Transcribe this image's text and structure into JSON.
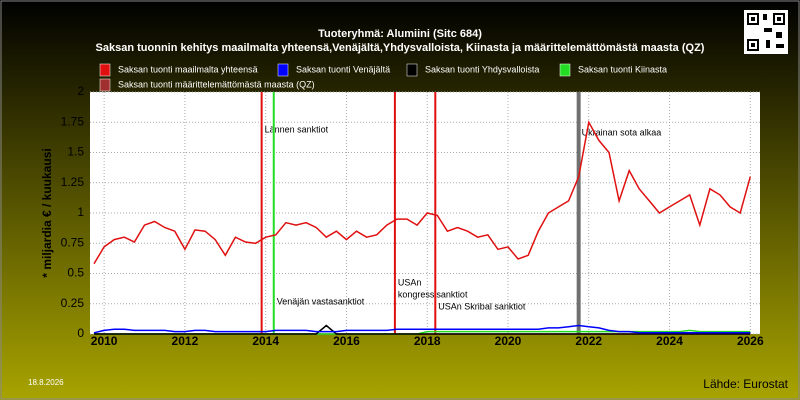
{
  "chart_data": {
    "type": "line",
    "title": "Tuoteryhmä: Alumiini (Sitc 684)",
    "subtitle": "Saksan tuonnin kehitys maailmalta yhteensä,Venäjältä,Yhdysvalloista, Kiinasta ja määrittelemättömästä maasta (QZ)",
    "y_label": "* miljardia € / kuukausi",
    "date": "18.8.2026",
    "source": "Lähde: Eurostat",
    "x": [
      2009.75,
      2010,
      2010.25,
      2010.5,
      2010.75,
      2011,
      2011.25,
      2011.5,
      2011.75,
      2012,
      2012.25,
      2012.5,
      2012.75,
      2013,
      2013.25,
      2013.5,
      2013.75,
      2014,
      2014.25,
      2014.5,
      2014.75,
      2015,
      2015.25,
      2015.5,
      2015.75,
      2016,
      2016.25,
      2016.5,
      2016.75,
      2017,
      2017.25,
      2017.5,
      2017.75,
      2018,
      2018.25,
      2018.5,
      2018.75,
      2019,
      2019.25,
      2019.5,
      2019.75,
      2020,
      2020.25,
      2020.5,
      2020.75,
      2021,
      2021.25,
      2021.5,
      2021.75,
      2022,
      2022.25,
      2022.5,
      2022.75,
      2023,
      2023.25,
      2023.5,
      2023.75,
      2024,
      2024.25,
      2024.5,
      2024.75,
      2025,
      2025.25,
      2025.5,
      2025.75,
      2026
    ],
    "series": [
      {
        "name": "Saksan tuonti maailmalta yhteensä",
        "color": "#e01010",
        "values": [
          0.58,
          0.72,
          0.78,
          0.8,
          0.76,
          0.9,
          0.93,
          0.88,
          0.85,
          0.7,
          0.86,
          0.85,
          0.78,
          0.65,
          0.8,
          0.76,
          0.75,
          0.8,
          0.82,
          0.92,
          0.9,
          0.92,
          0.88,
          0.8,
          0.85,
          0.78,
          0.85,
          0.8,
          0.82,
          0.9,
          0.95,
          0.95,
          0.9,
          1.0,
          0.98,
          0.85,
          0.88,
          0.85,
          0.8,
          0.82,
          0.7,
          0.72,
          0.62,
          0.65,
          0.85,
          1.0,
          1.05,
          1.1,
          1.3,
          1.75,
          1.6,
          1.5,
          1.1,
          1.35,
          1.2,
          1.1,
          1.0,
          1.05,
          1.1,
          1.15,
          0.9,
          1.2,
          1.15,
          1.05,
          1.0,
          1.3
        ]
      },
      {
        "name": "Saksan tuonti Venäjältä",
        "color": "#0000ff",
        "values": [
          0.01,
          0.03,
          0.04,
          0.04,
          0.03,
          0.03,
          0.03,
          0.03,
          0.02,
          0.02,
          0.03,
          0.03,
          0.02,
          0.02,
          0.02,
          0.02,
          0.02,
          0.02,
          0.03,
          0.03,
          0.03,
          0.03,
          0.02,
          0.02,
          0.02,
          0.03,
          0.03,
          0.03,
          0.03,
          0.03,
          0.04,
          0.04,
          0.04,
          0.04,
          0.04,
          0.04,
          0.04,
          0.04,
          0.04,
          0.04,
          0.04,
          0.04,
          0.04,
          0.04,
          0.04,
          0.05,
          0.05,
          0.06,
          0.07,
          0.06,
          0.05,
          0.03,
          0.02,
          0.02,
          0.01,
          0.01,
          0.01,
          0.01,
          0.01,
          0.01,
          0.01,
          0.01,
          0.01,
          0.01,
          0.01,
          0.01
        ]
      },
      {
        "name": "Saksan tuonti Yhdysvalloista",
        "color": "#000000",
        "values": [
          0,
          0,
          0,
          0,
          0,
          0,
          0,
          0,
          0,
          0,
          0,
          0,
          0,
          0,
          0,
          0,
          0,
          0,
          0,
          0,
          0,
          0,
          0,
          0.07,
          0,
          0,
          0,
          0,
          0,
          0,
          0,
          0,
          0,
          0,
          0,
          0,
          0,
          0,
          0,
          0,
          0,
          0,
          0,
          0,
          0,
          0,
          0,
          0,
          0,
          0,
          0,
          0,
          0,
          0,
          0,
          0,
          0,
          0,
          0,
          0,
          0,
          0,
          0,
          0,
          0,
          0
        ]
      },
      {
        "name": "Saksan tuonti Kiinasta",
        "color": "#22dd22",
        "values": [
          0,
          0,
          0,
          0,
          0,
          0,
          0,
          0,
          0,
          0,
          0,
          0,
          0,
          0,
          0,
          0,
          0,
          0,
          0,
          0,
          0,
          0,
          0,
          0,
          0,
          0,
          0,
          0,
          0,
          0,
          0,
          0,
          0,
          0.02,
          0.02,
          0.02,
          0.02,
          0.02,
          0.02,
          0.02,
          0.02,
          0.02,
          0.02,
          0.02,
          0.02,
          0.02,
          0.02,
          0.02,
          0.02,
          0.02,
          0.02,
          0.02,
          0.02,
          0.02,
          0.02,
          0.02,
          0.02,
          0.02,
          0.02,
          0.03,
          0.02,
          0.02,
          0.02,
          0.02,
          0.02,
          0.02
        ]
      },
      {
        "name": "Saksan tuonti määrittelemättömästä maasta (QZ)",
        "color": "#a03030",
        "values": [
          0,
          0,
          0,
          0,
          0,
          0,
          0,
          0,
          0,
          0,
          0,
          0,
          0,
          0,
          0,
          0,
          0,
          0,
          0,
          0,
          0,
          0,
          0,
          0,
          0,
          0,
          0,
          0,
          0,
          0,
          0,
          0,
          0,
          0,
          0,
          0,
          0,
          0,
          0,
          0,
          0,
          0,
          0,
          0,
          0,
          0,
          0,
          0,
          0,
          0,
          0,
          0,
          0,
          0,
          0,
          0,
          0,
          0,
          0,
          0,
          0,
          0,
          0,
          0,
          0,
          0
        ]
      }
    ],
    "events": [
      {
        "x": 2013.9,
        "color": "#e01010",
        "label": [
          "Lännen sanktiot"
        ]
      },
      {
        "x": 2014.2,
        "color": "#22dd22",
        "label": [
          "Venäjän vastasanktiot"
        ]
      },
      {
        "x": 2017.2,
        "color": "#e01010",
        "label": [
          "USAn",
          "kongressisanktiot"
        ]
      },
      {
        "x": 2018.2,
        "color": "#e01010",
        "label": [
          "USAn Skribal sanktiot"
        ]
      },
      {
        "x": 2021.75,
        "color": "#707070",
        "label": [
          "Ukrainan sota alkaa"
        ]
      }
    ],
    "xlim": [
      2009.65,
      2026.24
    ],
    "xticks": [
      2010,
      2012,
      2014,
      2016,
      2018,
      2020,
      2022,
      2024,
      2026
    ],
    "ylim": [
      0,
      2
    ],
    "yticks": [
      0,
      0.25,
      0.5,
      0.75,
      1,
      1.25,
      1.5,
      1.75,
      2
    ],
    "grid": true
  }
}
